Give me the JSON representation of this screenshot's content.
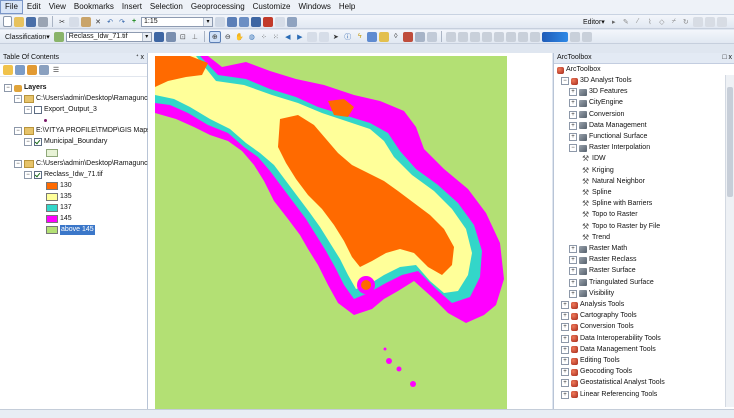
{
  "menu": [
    "File",
    "Edit",
    "View",
    "Bookmarks",
    "Insert",
    "Selection",
    "Geoprocessing",
    "Customize",
    "Windows",
    "Help"
  ],
  "toolbar": {
    "scale": "1:15",
    "editor_label": "Editor▾",
    "classification_label": "Classification▾",
    "layer_combo": "Reclass_Idw_71.tif"
  },
  "toc": {
    "title": "Table Of Contents",
    "pin": "&#x1F4CC; x",
    "root": "Layers",
    "items": [
      {
        "label": "C:\\Users\\admin\\Desktop\\Ramagunc"
      },
      {
        "label": "Export_Output_3"
      },
      {
        "label": "E:\\VITYA PROFILE\\TMDP\\GIS Maps c"
      },
      {
        "label": "Municipal_Boundary"
      },
      {
        "label": "C:\\Users\\admin\\Desktop\\Ramagunc"
      },
      {
        "label": "Reclass_Idw_71.tif"
      }
    ],
    "legend": [
      {
        "label": "130",
        "color": "#ff6a00"
      },
      {
        "label": "135",
        "color": "#ffff99"
      },
      {
        "label": "137",
        "color": "#33d6c9"
      },
      {
        "label": "145",
        "color": "#ff00ff"
      },
      {
        "label": "above 145",
        "color": "#b3e074"
      }
    ]
  },
  "toolbox": {
    "title": "ArcToolbox",
    "close": "□ x",
    "root": "ArcToolbox",
    "items": [
      {
        "label": "3D Analyst Tools",
        "level": 1,
        "kind": "toolbox",
        "exp": "−"
      },
      {
        "label": "3D Features",
        "level": 2,
        "kind": "toolset",
        "exp": "+"
      },
      {
        "label": "CityEngine",
        "level": 2,
        "kind": "toolset",
        "exp": "+"
      },
      {
        "label": "Conversion",
        "level": 2,
        "kind": "toolset",
        "exp": "+"
      },
      {
        "label": "Data Management",
        "level": 2,
        "kind": "toolset",
        "exp": "+"
      },
      {
        "label": "Functional Surface",
        "level": 2,
        "kind": "toolset",
        "exp": "+"
      },
      {
        "label": "Raster Interpolation",
        "level": 2,
        "kind": "toolset",
        "exp": "−"
      },
      {
        "label": "IDW",
        "level": 3,
        "kind": "tool"
      },
      {
        "label": "Kriging",
        "level": 3,
        "kind": "tool"
      },
      {
        "label": "Natural Neighbor",
        "level": 3,
        "kind": "tool"
      },
      {
        "label": "Spline",
        "level": 3,
        "kind": "tool"
      },
      {
        "label": "Spline with Barriers",
        "level": 3,
        "kind": "tool"
      },
      {
        "label": "Topo to Raster",
        "level": 3,
        "kind": "tool"
      },
      {
        "label": "Topo to Raster by File",
        "level": 3,
        "kind": "tool"
      },
      {
        "label": "Trend",
        "level": 3,
        "kind": "tool"
      },
      {
        "label": "Raster Math",
        "level": 2,
        "kind": "toolset",
        "exp": "+"
      },
      {
        "label": "Raster Reclass",
        "level": 2,
        "kind": "toolset",
        "exp": "+"
      },
      {
        "label": "Raster Surface",
        "level": 2,
        "kind": "toolset",
        "exp": "+"
      },
      {
        "label": "Triangulated Surface",
        "level": 2,
        "kind": "toolset",
        "exp": "+"
      },
      {
        "label": "Visibility",
        "level": 2,
        "kind": "toolset",
        "exp": "+"
      },
      {
        "label": "Analysis Tools",
        "level": 1,
        "kind": "toolbox",
        "exp": "+"
      },
      {
        "label": "Cartography Tools",
        "level": 1,
        "kind": "toolbox",
        "exp": "+"
      },
      {
        "label": "Conversion Tools",
        "level": 1,
        "kind": "toolbox",
        "exp": "+"
      },
      {
        "label": "Data Interoperability Tools",
        "level": 1,
        "kind": "toolbox",
        "exp": "+"
      },
      {
        "label": "Data Management Tools",
        "level": 1,
        "kind": "toolbox",
        "exp": "+"
      },
      {
        "label": "Editing Tools",
        "level": 1,
        "kind": "toolbox",
        "exp": "+"
      },
      {
        "label": "Geocoding Tools",
        "level": 1,
        "kind": "toolbox",
        "exp": "+"
      },
      {
        "label": "Geostatistical Analyst Tools",
        "level": 1,
        "kind": "toolbox",
        "exp": "+"
      },
      {
        "label": "Linear Referencing Tools",
        "level": 1,
        "kind": "toolbox",
        "exp": "+"
      }
    ]
  },
  "colors": {
    "c130": "#ff6a00",
    "c135": "#ffff99",
    "c137": "#33d6c9",
    "c145": "#ff00ff",
    "cabove": "#b3e074"
  }
}
